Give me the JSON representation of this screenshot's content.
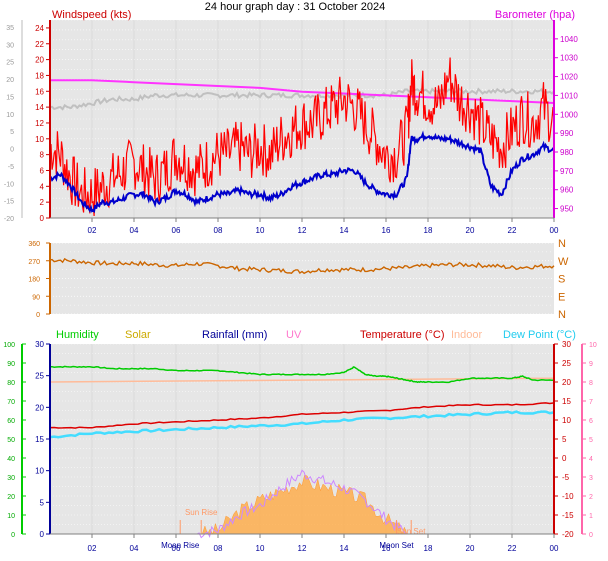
{
  "title": "24 hour graph day : 31 October 2024",
  "colors": {
    "wind_speed": "#ff0000",
    "wind_avg": "#0000cc",
    "barometer": "#ff33ff",
    "indoor_humidity": "#c0c0c0",
    "wind_dir": "#cc6600",
    "humidity": "#00cc00",
    "solar": "#ffaa44",
    "uv": "#cc88ff",
    "temperature": "#dd0000",
    "indoor": "#ffbb99",
    "dew_point": "#44ddff",
    "plot_bg": "#e6e6e6",
    "time_labels": "#000099"
  },
  "chart_data": [
    {
      "type": "line",
      "panel": "wind_barometer",
      "title": "24 hour graph day : 31 October 2024",
      "left_axis_label": "Windspeed (kts)",
      "right_axis_label": "Barometer (hpa)",
      "x_ticks": [
        "02",
        "04",
        "06",
        "08",
        "10",
        "12",
        "14",
        "16",
        "18",
        "20",
        "22",
        "00"
      ],
      "x_range": [
        0,
        24
      ],
      "y_left_ticks": [
        "0",
        "2",
        "4",
        "6",
        "8",
        "10",
        "12",
        "14",
        "16",
        "18",
        "20",
        "22",
        "24"
      ],
      "y_left_range": [
        0,
        25
      ],
      "y_right_ticks": [
        "950",
        "960",
        "970",
        "980",
        "990",
        "1000",
        "1010",
        "1020",
        "1030",
        "1040"
      ],
      "y_right_range": [
        945,
        1050
      ],
      "y_outer_ticks": [
        "-20",
        "-15",
        "-10",
        "-5",
        "0",
        "5",
        "10",
        "15",
        "20",
        "25",
        "30",
        "35"
      ],
      "series": [
        {
          "key": "wind_gust",
          "x": [
            0,
            0.5,
            1,
            1.5,
            2,
            2.5,
            3,
            3.5,
            4,
            4.5,
            5,
            5.5,
            6,
            6.5,
            7,
            7.5,
            8,
            8.5,
            9,
            9.5,
            10,
            10.5,
            11,
            11.5,
            12,
            12.5,
            13,
            13.5,
            14,
            14.5,
            15,
            15.5,
            16,
            16.5,
            17,
            17.2,
            17.5,
            18,
            18.5,
            19,
            19.5,
            20,
            20.5,
            21,
            21.5,
            22,
            22.5,
            23,
            23.5,
            24
          ],
          "values": [
            9,
            8,
            5,
            3,
            3,
            4,
            5,
            6,
            7,
            6,
            5,
            6,
            8,
            7,
            6,
            7,
            8,
            8,
            9,
            8,
            9,
            8,
            10,
            11,
            12,
            12,
            13,
            14,
            15,
            14,
            12,
            10,
            8,
            8,
            11,
            17,
            16,
            15,
            14,
            18,
            15,
            14,
            12,
            10,
            9,
            11,
            13,
            12,
            14,
            12
          ]
        },
        {
          "key": "wind_avg",
          "x": [
            0,
            0.5,
            1,
            1.5,
            2,
            2.5,
            3,
            3.5,
            4,
            4.5,
            5,
            5.5,
            6,
            6.5,
            7,
            7.5,
            8,
            8.5,
            9,
            9.5,
            10,
            10.5,
            11,
            11.5,
            12,
            12.5,
            13,
            13.5,
            14,
            14.5,
            15,
            15.5,
            16,
            16.5,
            17,
            17.2,
            17.5,
            18,
            18.5,
            19,
            19.5,
            20,
            20.5,
            21,
            21.5,
            22,
            22.5,
            23,
            23.5,
            24
          ],
          "values": [
            5,
            5.5,
            4,
            2,
            1,
            2,
            2,
            2.5,
            3,
            3,
            2,
            2.5,
            3.5,
            3,
            2,
            2.5,
            3,
            3,
            3.5,
            3,
            3,
            2.5,
            3,
            4,
            4.5,
            5,
            5.5,
            5.5,
            6,
            6,
            4.5,
            3.5,
            3,
            3,
            5,
            10,
            10,
            10.5,
            10,
            10,
            9.5,
            9,
            8.5,
            4,
            3,
            6,
            7.5,
            8,
            9,
            8.5
          ]
        },
        {
          "key": "barometer",
          "x": [
            0,
            2,
            4,
            6,
            8,
            10,
            12,
            14,
            16,
            18,
            20,
            22,
            24
          ],
          "values": [
            1018,
            1018,
            1017,
            1016,
            1015,
            1014,
            1012,
            1011,
            1010,
            1009,
            1008,
            1007,
            1006
          ]
        },
        {
          "key": "indoor_humidity",
          "x": [
            0,
            1,
            2,
            3,
            4,
            5,
            6,
            7,
            8,
            9,
            10,
            11,
            12,
            13,
            14,
            15,
            16,
            17,
            18,
            19,
            20,
            21,
            22,
            23,
            24
          ],
          "values": [
            14,
            14,
            14.5,
            15,
            15,
            15.5,
            15.5,
            15.5,
            15.5,
            15.5,
            15.5,
            15.5,
            15.5,
            15.5,
            15.5,
            15.5,
            15.5,
            16,
            16,
            16,
            16,
            16,
            16,
            16,
            16
          ]
        }
      ]
    },
    {
      "type": "line",
      "panel": "wind_direction",
      "y_ticks": [
        "0",
        "90",
        "180",
        "270",
        "360"
      ],
      "y_range": [
        0,
        360
      ],
      "compass_labels": [
        "N",
        "W",
        "S",
        "E",
        "N"
      ],
      "series": [
        {
          "key": "wind_dir",
          "x": [
            0,
            1,
            2,
            3,
            4,
            5,
            6,
            7,
            8,
            9,
            10,
            11,
            12,
            13,
            14,
            15,
            16,
            17,
            18,
            19,
            20,
            21,
            22,
            23,
            24
          ],
          "values": [
            275,
            270,
            260,
            255,
            258,
            250,
            245,
            255,
            245,
            230,
            225,
            220,
            215,
            225,
            225,
            225,
            230,
            235,
            245,
            250,
            250,
            245,
            235,
            240,
            245
          ]
        }
      ]
    },
    {
      "type": "line",
      "panel": "temperature_humidity",
      "legend": [
        "Humidity",
        "Solar",
        "Rainfall (mm)",
        "UV",
        "Temperature (°C)",
        "Indoor",
        "Dew Point (°C)"
      ],
      "y_humidity_ticks": [
        "0",
        "10",
        "20",
        "30",
        "40",
        "50",
        "60",
        "70",
        "80",
        "90",
        "100"
      ],
      "y_inner_ticks": [
        "0",
        "5",
        "10",
        "15",
        "20",
        "25",
        "30"
      ],
      "y_temp_ticks": [
        "-20",
        "-15",
        "-10",
        "-5",
        "0",
        "5",
        "10",
        "15",
        "20",
        "25",
        "30"
      ],
      "y_uv_ticks": [
        "0",
        "1",
        "2",
        "3",
        "4",
        "5",
        "6",
        "7",
        "8",
        "9",
        "10"
      ],
      "temp_range": [
        -20,
        30
      ],
      "x_ticks": [
        "02",
        "04",
        "06",
        "08",
        "10",
        "12",
        "14",
        "16",
        "18",
        "20",
        "22",
        "00"
      ],
      "x_range": [
        0,
        24
      ],
      "annotations": [
        "Moon Rise",
        "Sun Rise",
        "Moon Set",
        "Sun Set"
      ],
      "series": [
        {
          "key": "humidity",
          "x": [
            0,
            1,
            2,
            3,
            4,
            5,
            6,
            7,
            8,
            9,
            10,
            11,
            12,
            13,
            14,
            14.5,
            15,
            15.5,
            16,
            16.5,
            17,
            17.5,
            18,
            19,
            20,
            21,
            22,
            22.5,
            23,
            24
          ],
          "values": [
            88,
            88,
            88,
            87,
            87,
            87,
            86,
            86,
            86,
            85,
            84,
            84,
            84,
            84,
            85,
            88,
            84,
            83,
            83,
            82,
            81,
            80,
            80,
            80,
            82,
            82,
            82,
            83,
            81,
            81
          ]
        },
        {
          "key": "temperature",
          "x": [
            0,
            2,
            4,
            6,
            8,
            10,
            12,
            14,
            16,
            18,
            20,
            22,
            24
          ],
          "values": [
            8,
            8,
            9,
            9.5,
            10,
            10.5,
            11.5,
            12,
            12.5,
            13.5,
            14,
            14,
            14.5
          ]
        },
        {
          "key": "indoor",
          "x": [
            0,
            24
          ],
          "values": [
            20,
            21
          ]
        },
        {
          "key": "dew_point",
          "x": [
            0,
            2,
            4,
            6,
            8,
            10,
            12,
            14,
            16,
            18,
            20,
            22,
            24
          ],
          "values": [
            5.5,
            6.5,
            7,
            7.5,
            8,
            8.5,
            9,
            10,
            10.5,
            11,
            11.5,
            12,
            12
          ]
        },
        {
          "key": "solar",
          "x": [
            7,
            8,
            9,
            10,
            11,
            12,
            13,
            14,
            15,
            16,
            17
          ],
          "values": [
            0,
            0.2,
            1.2,
            1.8,
            2.3,
            2.8,
            2.5,
            2.2,
            1.8,
            0.8,
            0
          ]
        },
        {
          "key": "uv",
          "x": [
            7,
            8,
            9,
            10,
            11,
            12,
            13,
            14,
            15,
            16,
            17
          ],
          "values": [
            0,
            0.2,
            1,
            1.5,
            2.4,
            3.2,
            2.8,
            2.4,
            1.8,
            0.8,
            0
          ]
        }
      ]
    }
  ]
}
